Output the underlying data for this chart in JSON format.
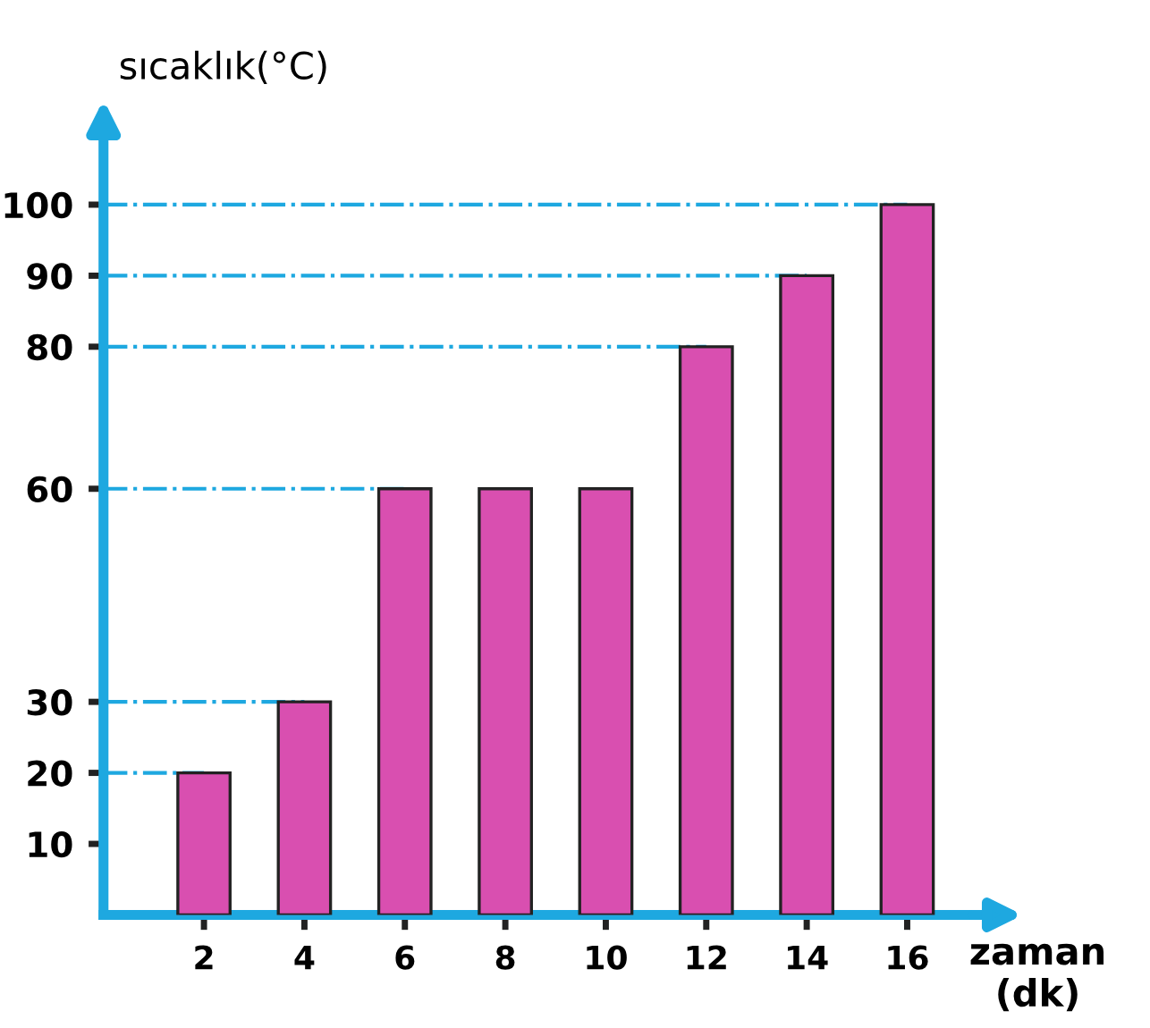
{
  "chart_data": {
    "type": "bar",
    "xlabel": "zaman\n(dk)",
    "ylabel": "sıcaklık(°C)",
    "categories": [
      "2",
      "4",
      "6",
      "8",
      "10",
      "12",
      "14",
      "16"
    ],
    "values": [
      20,
      30,
      60,
      60,
      60,
      80,
      90,
      100
    ],
    "color": "#d94fb0",
    "ylim": [
      0,
      110
    ],
    "yticks": [
      10,
      20,
      30,
      60,
      80,
      90,
      100
    ],
    "ref_lines": [
      {
        "axis": "y",
        "value": 20,
        "color": "#1ea8e0",
        "line_style": "dashdot"
      },
      {
        "axis": "y",
        "value": 30,
        "color": "#1ea8e0",
        "line_style": "dashdot"
      },
      {
        "axis": "y",
        "value": 60,
        "color": "#1ea8e0",
        "line_style": "dashdot"
      },
      {
        "axis": "y",
        "value": 80,
        "color": "#1ea8e0",
        "line_style": "dashdot"
      },
      {
        "axis": "y",
        "value": 90,
        "color": "#1ea8e0",
        "line_style": "dashdot"
      },
      {
        "axis": "y",
        "value": 100,
        "color": "#1ea8e0",
        "line_style": "dashdot"
      }
    ],
    "grid": false,
    "legend": false
  }
}
